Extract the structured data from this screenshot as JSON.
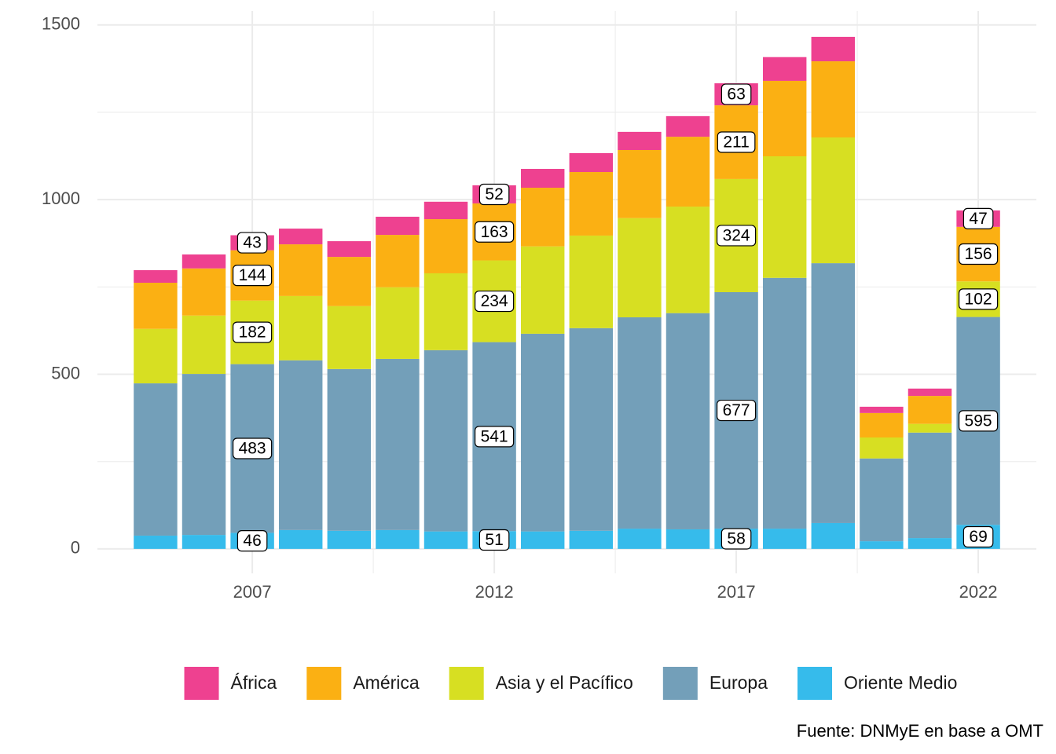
{
  "chart_data": {
    "type": "stacked-bar",
    "caption": "Fuente: DNMyE en base a OMT",
    "x": [
      2005,
      2006,
      2007,
      2008,
      2009,
      2010,
      2011,
      2012,
      2013,
      2014,
      2015,
      2016,
      2017,
      2018,
      2019,
      2020,
      2021,
      2022
    ],
    "series": [
      {
        "name": "África",
        "color": "#ee4190",
        "values": [
          36,
          40,
          43,
          45,
          45,
          52,
          50,
          52,
          54,
          54,
          52,
          59,
          63,
          68,
          70,
          18,
          21,
          47
        ]
      },
      {
        "name": "América",
        "color": "#fbb013",
        "values": [
          132,
          135,
          144,
          148,
          141,
          150,
          155,
          163,
          168,
          182,
          195,
          200,
          211,
          216,
          218,
          70,
          80,
          156
        ]
      },
      {
        "name": "Asia y el Pacífico",
        "color": "#d7df22",
        "values": [
          156,
          167,
          182,
          184,
          180,
          205,
          220,
          234,
          250,
          265,
          284,
          305,
          324,
          348,
          360,
          60,
          25,
          102
        ]
      },
      {
        "name": "Europa",
        "color": "#739fb9",
        "values": [
          436,
          461,
          483,
          486,
          463,
          490,
          519,
          541,
          566,
          580,
          605,
          619,
          677,
          718,
          744,
          237,
          302,
          595
        ]
      },
      {
        "name": "Oriente Medio",
        "color": "#36bbeb",
        "values": [
          38,
          40,
          46,
          54,
          52,
          54,
          50,
          51,
          50,
          52,
          58,
          56,
          58,
          58,
          74,
          22,
          31,
          69
        ]
      }
    ],
    "xlim": [
      2003.8,
      2023.2
    ],
    "xticks": [
      2007,
      2012,
      2017,
      2022
    ],
    "ylim": [
      -70,
      1540
    ],
    "yticks": [
      0,
      500,
      1000,
      1500
    ],
    "grid": true,
    "legend": "bottom"
  }
}
